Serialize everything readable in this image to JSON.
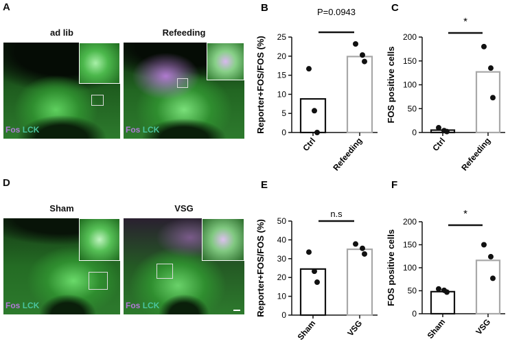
{
  "panels": {
    "A": {
      "letter": "A",
      "images": [
        {
          "title": "ad lib",
          "label_fos": "Fos",
          "label_lck": "LCK"
        },
        {
          "title": "Refeeding",
          "label_fos": "Fos",
          "label_lck": "LCK"
        }
      ]
    },
    "D": {
      "letter": "D",
      "images": [
        {
          "title": "Sham",
          "label_fos": "Fos",
          "label_lck": "LCK"
        },
        {
          "title": "VSG",
          "label_fos": "Fos",
          "label_lck": "LCK"
        }
      ]
    }
  },
  "colors": {
    "ctrl_bar": "#111111",
    "treat_bar": "#a8a8a8",
    "dot": "#111111"
  },
  "chart_data": [
    {
      "panel": "B",
      "type": "bar",
      "categories": [
        "Ctrl",
        "Refeeding"
      ],
      "values": [
        8.8,
        19.9
      ],
      "points": [
        [
          16.7,
          5.7,
          0
        ],
        [
          23.2,
          20.3,
          18.6
        ]
      ],
      "ylabel": "Reporter+FOS/FOS (%)",
      "ylim": [
        0,
        25
      ],
      "yticks": [
        "0",
        "5",
        "10",
        "15",
        "20",
        "25"
      ],
      "annotation": "P=0.0943",
      "grid": false
    },
    {
      "panel": "C",
      "type": "bar",
      "categories": [
        "Ctrl",
        "Refeeding"
      ],
      "values": [
        5,
        127
      ],
      "points": [
        [
          10,
          4,
          2
        ],
        [
          180,
          135,
          73
        ]
      ],
      "ylabel": "FOS positive cells",
      "ylim": [
        0,
        200
      ],
      "yticks": [
        "0",
        "50",
        "100",
        "150",
        "200"
      ],
      "annotation": "*",
      "grid": false
    },
    {
      "panel": "E",
      "type": "bar",
      "categories": [
        "Sham",
        "VSG"
      ],
      "values": [
        24.5,
        35
      ],
      "points": [
        [
          33.5,
          23.3,
          17.5
        ],
        [
          37.8,
          35.5,
          32.5
        ]
      ],
      "ylabel": "Reporter+FOS/FOS (%)",
      "ylim": [
        0,
        50
      ],
      "yticks": [
        "0",
        "10",
        "20",
        "30",
        "40",
        "50"
      ],
      "annotation": "n.s",
      "grid": false
    },
    {
      "panel": "F",
      "type": "bar",
      "categories": [
        "Sham",
        "VSG"
      ],
      "values": [
        48,
        116
      ],
      "points": [
        [
          54,
          51,
          47
        ],
        [
          150,
          124,
          77
        ]
      ],
      "ylabel": "FOS positive cells",
      "ylim": [
        0,
        200
      ],
      "yticks": [
        "0",
        "50",
        "100",
        "150",
        "200"
      ],
      "annotation": "*",
      "grid": false
    }
  ]
}
